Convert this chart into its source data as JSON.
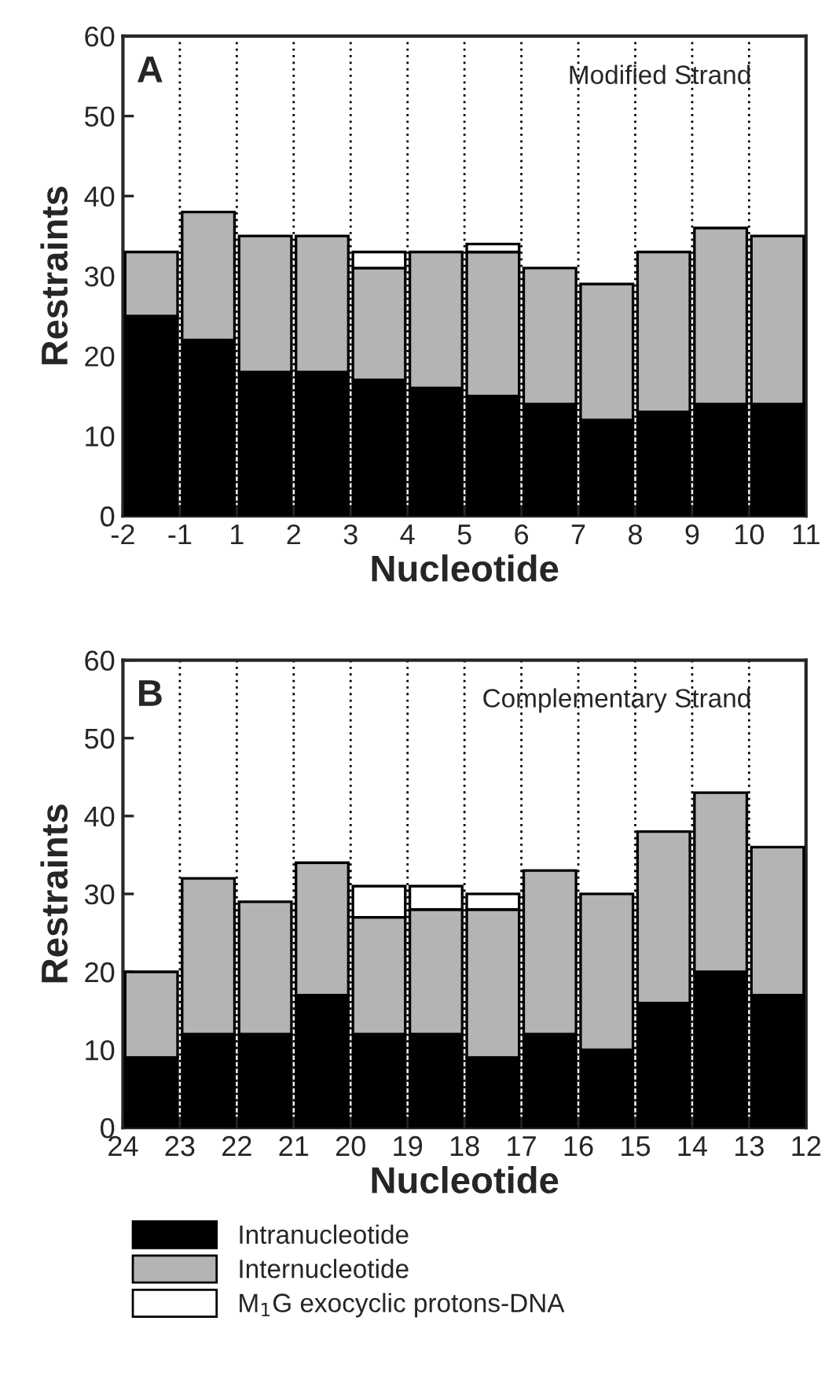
{
  "chart_data": [
    {
      "type": "bar",
      "stacked": true,
      "categories": [
        "-2",
        null,
        "-1",
        null,
        "1",
        null,
        "2",
        null,
        "3",
        null,
        "4",
        null,
        "5",
        null,
        "6",
        null,
        "7",
        null,
        "8",
        null,
        "9",
        null,
        "10",
        null,
        "11"
      ],
      "ylim": [
        0,
        60
      ],
      "yticks": [
        0,
        10,
        20,
        30,
        40,
        50,
        60
      ],
      "xlabel": "Nucleotide",
      "ylabel": "Restraints",
      "grid": "x",
      "annotations": [
        "A",
        "Modified Strand"
      ],
      "series": [
        {
          "color": "#000000",
          "values": [
            null,
            25,
            null,
            22,
            null,
            18,
            null,
            18,
            null,
            17,
            null,
            16,
            null,
            15,
            null,
            14,
            null,
            12,
            null,
            13,
            null,
            14,
            null,
            14,
            null
          ]
        },
        {
          "color": "#b4b4b4",
          "values": [
            null,
            8,
            null,
            16,
            null,
            17,
            null,
            17,
            null,
            14,
            null,
            17,
            null,
            18,
            null,
            17,
            null,
            17,
            null,
            20,
            null,
            22,
            null,
            21,
            null
          ]
        },
        {
          "color": "#ffffff",
          "values": [
            null,
            null,
            null,
            null,
            null,
            null,
            null,
            null,
            null,
            2,
            null,
            null,
            null,
            1,
            null,
            null,
            null,
            null,
            null,
            null,
            null,
            null,
            null,
            null,
            null
          ]
        }
      ]
    },
    {
      "type": "bar",
      "stacked": true,
      "categories": [
        "24",
        null,
        "23",
        null,
        "22",
        null,
        "21",
        null,
        "20",
        null,
        "19",
        null,
        "18",
        null,
        "17",
        null,
        "16",
        null,
        "15",
        null,
        "14",
        null,
        "13",
        null,
        "12"
      ],
      "ylim": [
        0,
        60
      ],
      "yticks": [
        0,
        10,
        20,
        30,
        40,
        50,
        60
      ],
      "xlabel": "Nucleotide",
      "ylabel": "Restraints",
      "grid": "x",
      "legend": "bottom",
      "annotations": [
        "B",
        "Complementary Strand"
      ],
      "series": [
        {
          "name": "Intranucleotide",
          "color": "#000000",
          "values": [
            null,
            9,
            null,
            12,
            null,
            12,
            null,
            17,
            null,
            12,
            null,
            12,
            null,
            9,
            null,
            12,
            null,
            10,
            null,
            16,
            null,
            20,
            null,
            17,
            null
          ]
        },
        {
          "name": "Internucleotide",
          "color": "#b4b4b4",
          "values": [
            null,
            11,
            null,
            20,
            null,
            17,
            null,
            17,
            null,
            15,
            null,
            16,
            null,
            19,
            null,
            21,
            null,
            20,
            null,
            22,
            null,
            23,
            null,
            19,
            null
          ]
        },
        {
          "name": "M$_{1}$G exocyclic protons-DNA",
          "color": "#ffffff",
          "values": [
            null,
            null,
            null,
            null,
            null,
            null,
            null,
            null,
            null,
            4,
            null,
            3,
            null,
            2,
            null,
            null,
            null,
            null,
            null,
            null,
            null,
            null,
            null,
            null,
            null
          ]
        }
      ]
    }
  ]
}
